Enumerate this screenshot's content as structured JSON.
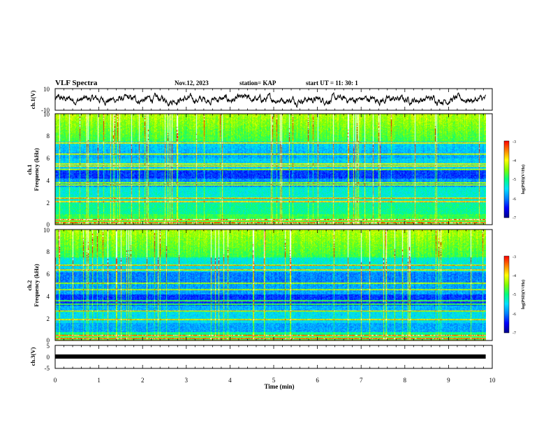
{
  "header": {
    "title": "VLF Spectra",
    "date": "Nov.12, 2023",
    "station": "station= KAP",
    "start": "start  UT =   11: 30: 1"
  },
  "chart_data": {
    "type": "heatmap",
    "xlabel": "Time  (min)",
    "xlim": [
      0,
      10
    ],
    "x_ticks": [
      "0",
      "1",
      "2",
      "3",
      "4",
      "5",
      "6",
      "7",
      "8",
      "9",
      "10"
    ],
    "panels": [
      {
        "id": "ch1-waveform",
        "type": "line",
        "ylabel": "ch.1(V)",
        "ylim": [
          -10,
          10
        ],
        "y_ticks": [
          "10",
          "-10"
        ],
        "data_extent_min": 9.85,
        "amplitude": 3
      },
      {
        "id": "ch1-spectrogram",
        "type": "heatmap",
        "ylabel": "ch.1\nFrequency  (kHz)",
        "ylim": [
          0,
          10
        ],
        "y_ticks": [
          "0",
          "2",
          "4",
          "6",
          "8",
          "10"
        ],
        "data_extent_min": 9.85,
        "bands_khz": [
          0.2,
          0.5,
          2.1,
          2.4,
          3.6,
          3.8,
          5.0,
          5.3,
          5.5,
          6.4,
          7.4
        ],
        "colorbar": {
          "label": "log(PSD)(V²/Hz)",
          "range": [
            -7,
            -3
          ],
          "ticks": [
            "-3",
            "-4",
            "-5",
            "-6",
            "-7"
          ]
        }
      },
      {
        "id": "ch2-spectrogram",
        "type": "heatmap",
        "ylabel": "ch.2\nFrequency  (kHz)",
        "ylim": [
          0,
          10
        ],
        "y_ticks": [
          "0",
          "2",
          "4",
          "6",
          "8",
          "10"
        ],
        "data_extent_min": 9.85,
        "bands_khz": [
          0.2,
          0.5,
          1.9,
          2.7,
          3.3,
          3.6,
          4.6,
          5.2,
          6.4,
          6.8
        ],
        "colorbar": {
          "label": "log(PSD)(V²/Hz)",
          "range": [
            -7,
            -3
          ],
          "ticks": [
            "-3",
            "-4",
            "-5",
            "-6",
            "-7"
          ]
        }
      },
      {
        "id": "ch3-waveform",
        "type": "line",
        "ylabel": "ch.3(V)",
        "ylim": [
          -5,
          5
        ],
        "y_ticks": [
          "5",
          "0",
          "-5"
        ],
        "data_extent_min": 9.85,
        "level": 0
      }
    ],
    "colormap": [
      "#00008b",
      "#0000ff",
      "#0080ff",
      "#00e0ff",
      "#00ff80",
      "#80ff00",
      "#ffff00",
      "#ff8000",
      "#ff0000",
      "#ffffff"
    ]
  }
}
